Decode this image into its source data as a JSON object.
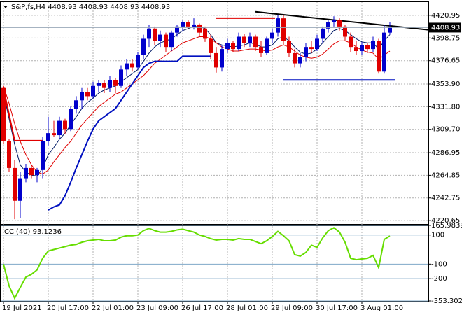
{
  "chart_data": [
    {
      "type": "candlestick",
      "title": "S&P,fs,H4  4408.93 4408.93 4408.93 4408.93",
      "categories": [
        "19 Jul 2021",
        null,
        null,
        null,
        null,
        null,
        null,
        null,
        "20 Jul 17:00",
        null,
        null,
        null,
        null,
        null,
        null,
        null,
        "22 Jul 01:00",
        null,
        null,
        null,
        null,
        null,
        null,
        null,
        "23 Jul 09:00",
        null,
        null,
        null,
        null,
        null,
        null,
        null,
        "26 Jul 17:00",
        null,
        null,
        null,
        null,
        null,
        null,
        null,
        "28 Jul 01:00",
        null,
        null,
        null,
        null,
        null,
        null,
        null,
        "29 Jul 09:00",
        null,
        null,
        null,
        null,
        null,
        null,
        null,
        "30 Jul 17:00",
        null,
        null,
        null,
        null,
        null,
        null,
        null,
        "3 Aug 01:00",
        null,
        null,
        null,
        null,
        null
      ],
      "open": [
        4350,
        4298,
        4272,
        4240,
        4262,
        4272,
        4265,
        4270,
        4298,
        4306,
        4304,
        4318,
        4310,
        4330,
        4338,
        4346,
        4342,
        4352,
        4355,
        4350,
        4358,
        4352,
        4368,
        4374,
        4370,
        4382,
        4398,
        4408,
        4396,
        4402,
        4390,
        4404,
        4410,
        4414,
        4410,
        4412,
        4408,
        4398,
        4384,
        4370,
        4388,
        4394,
        4388,
        4400,
        4394,
        4400,
        4390,
        4384,
        4398,
        4404,
        4418,
        4396,
        4384,
        4374,
        4380,
        4390,
        4388,
        4398,
        4408,
        4414,
        4416,
        4410,
        4400,
        4390,
        4386,
        4392,
        4388,
        4396,
        4366,
        4404
      ],
      "high": [
        4352,
        4300,
        4280,
        4268,
        4276,
        4275,
        4272,
        4302,
        4322,
        4318,
        4322,
        4320,
        4332,
        4342,
        4350,
        4350,
        4356,
        4358,
        4358,
        4362,
        4360,
        4372,
        4378,
        4378,
        4385,
        4402,
        4412,
        4410,
        4406,
        4404,
        4406,
        4412,
        4416,
        4416,
        4418,
        4413,
        4410,
        4402,
        4390,
        4392,
        4398,
        4396,
        4404,
        4403,
        4404,
        4402,
        4396,
        4400,
        4408,
        4421,
        4421,
        4400,
        4388,
        4384,
        4394,
        4396,
        4402,
        4410,
        4416,
        4420,
        4418,
        4412,
        4404,
        4396,
        4395,
        4394,
        4400,
        4398,
        4412,
        4414
      ],
      "low": [
        4295,
        4268,
        4222,
        4223,
        4258,
        4262,
        4258,
        4262,
        4294,
        4302,
        4300,
        4305,
        4308,
        4325,
        4330,
        4338,
        4340,
        4346,
        4345,
        4346,
        4345,
        4350,
        4362,
        4366,
        4368,
        4378,
        4390,
        4392,
        4390,
        4385,
        4386,
        4400,
        4405,
        4408,
        4407,
        4400,
        4395,
        4378,
        4365,
        4366,
        4384,
        4385,
        4386,
        4390,
        4390,
        4386,
        4380,
        4382,
        4394,
        4400,
        4392,
        4380,
        4370,
        4370,
        4376,
        4384,
        4386,
        4394,
        4404,
        4410,
        4406,
        4396,
        4385,
        4382,
        4382,
        4384,
        4385,
        4364,
        4364,
        4402
      ],
      "close": [
        4298,
        4272,
        4240,
        4262,
        4272,
        4265,
        4270,
        4298,
        4306,
        4304,
        4318,
        4310,
        4330,
        4338,
        4346,
        4342,
        4352,
        4355,
        4350,
        4358,
        4352,
        4368,
        4374,
        4370,
        4382,
        4398,
        4408,
        4396,
        4402,
        4390,
        4404,
        4410,
        4414,
        4410,
        4412,
        4404,
        4398,
        4384,
        4370,
        4388,
        4394,
        4388,
        4400,
        4394,
        4400,
        4390,
        4384,
        4398,
        4404,
        4418,
        4396,
        4384,
        4374,
        4380,
        4390,
        4388,
        4398,
        4408,
        4414,
        4416,
        4410,
        4400,
        4390,
        4386,
        4392,
        4388,
        4396,
        4366,
        4404,
        4408.93
      ],
      "up_color": "#0000cc",
      "down_color": "#e00000",
      "series": [
        {
          "color": "#001a66",
          "values": [
            4345,
            4320,
            4295,
            4275,
            4268,
            4265,
            4264,
            4272,
            4285,
            4292,
            4300,
            4306,
            4314,
            4322,
            4330,
            4336,
            4340,
            4345,
            4348,
            4350,
            4352,
            4356,
            4360,
            4364,
            4368,
            4376,
            4384,
            4390,
            4394,
            4396,
            4398,
            4402,
            4406,
            4408,
            4410,
            4410,
            4408,
            4402,
            4394,
            4392,
            4391,
            4390,
            4391,
            4392,
            4394,
            4393,
            4390,
            4390,
            4392,
            4398,
            4400,
            4396,
            4390,
            4385,
            4383,
            4384,
            4388,
            4394,
            4400,
            4406,
            4408,
            4406,
            4402,
            4398,
            4395,
            4394,
            4394,
            4388,
            4396,
            4402
          ]
        },
        {
          "color": "#e00000",
          "values": [
            4352,
            4335,
            4315,
            4298,
            4285,
            4275,
            4268,
            4266,
            4270,
            4278,
            4285,
            4292,
            4298,
            4306,
            4314,
            4320,
            4326,
            4332,
            4336,
            4340,
            4344,
            4346,
            4350,
            4354,
            4358,
            4362,
            4368,
            4374,
            4378,
            4382,
            4386,
            4390,
            4394,
            4396,
            4398,
            4400,
            4400,
            4398,
            4394,
            4390,
            4388,
            4386,
            4386,
            4387,
            4388,
            4388,
            4387,
            4386,
            4387,
            4390,
            4392,
            4390,
            4386,
            4382,
            4380,
            4379,
            4380,
            4383,
            4388,
            4393,
            4396,
            4396,
            4394,
            4390,
            4387,
            4385,
            4384,
            4378,
            4382,
            4386
          ]
        },
        {
          "color": "#0010c0",
          "width": 2,
          "values": [
            null,
            null,
            null,
            null,
            null,
            null,
            null,
            null,
            4231,
            4234,
            4236,
            4245,
            4258,
            4272,
            4285,
            4298,
            4310,
            4318,
            4322,
            4326,
            4330,
            4338,
            4346,
            4354,
            4362,
            4370,
            4374,
            4376,
            4376,
            4376,
            4376,
            4376,
            4381,
            4381,
            4381,
            4381,
            4381,
            4381,
            null,
            null,
            null,
            null,
            null,
            null,
            null,
            null,
            null,
            null,
            null,
            null,
            null,
            null,
            null,
            null,
            null,
            null,
            null,
            null,
            null,
            null,
            null,
            null,
            null,
            null,
            null,
            null,
            null,
            null,
            null,
            null
          ]
        }
      ],
      "lines": [
        {
          "color": "#e00000",
          "x": [
            0,
            2,
            7
          ],
          "y": [
            4349.7,
            4298.7,
            4298.7
          ]
        },
        {
          "color": "#e00000",
          "x": [
            38,
            48.5
          ],
          "y": [
            4418.2,
            4418.2
          ]
        },
        {
          "color": "#0010c0",
          "x": [
            50,
            70
          ],
          "y": [
            4357.8,
            4357.8
          ]
        },
        {
          "color": "#000000",
          "x": [
            45,
            76
          ],
          "y": [
            4424.4,
            4406.7
          ]
        }
      ],
      "last_price": 4408.93,
      "ylim": [
        4217.3,
        4434.5
      ],
      "yticks": [
        4420.95,
        4398.75,
        4376.65,
        {
          "value": 4353.9,
          "label": "4353.90"
        },
        {
          "value": 4331.8,
          "label": "4331.80"
        },
        {
          "value": 4309.7,
          "label": "4309.70"
        },
        4286.95,
        4264.85,
        4242.75,
        4220.65
      ],
      "grid": true
    },
    {
      "type": "line",
      "title": "CCI(40) 93.1236",
      "color": "#66dd00",
      "values": [
        -100,
        -250,
        -335,
        -260,
        -190,
        -170,
        -140,
        -60,
        -10,
        0,
        10,
        20,
        30,
        35,
        50,
        60,
        65,
        70,
        60,
        60,
        65,
        85,
        95,
        95,
        100,
        130,
        145,
        130,
        120,
        120,
        125,
        135,
        140,
        130,
        120,
        100,
        90,
        75,
        65,
        70,
        70,
        65,
        75,
        70,
        70,
        55,
        40,
        60,
        90,
        125,
        95,
        60,
        -35,
        -45,
        -20,
        30,
        15,
        80,
        130,
        150,
        120,
        50,
        -60,
        -70,
        -65,
        -60,
        -40,
        -125,
        70,
        93.1236
      ],
      "ylim": [
        -353.3029,
        165.9839
      ],
      "yticks": [
        165.9839,
        100,
        -100,
        -200,
        -353.3029
      ]
    }
  ]
}
